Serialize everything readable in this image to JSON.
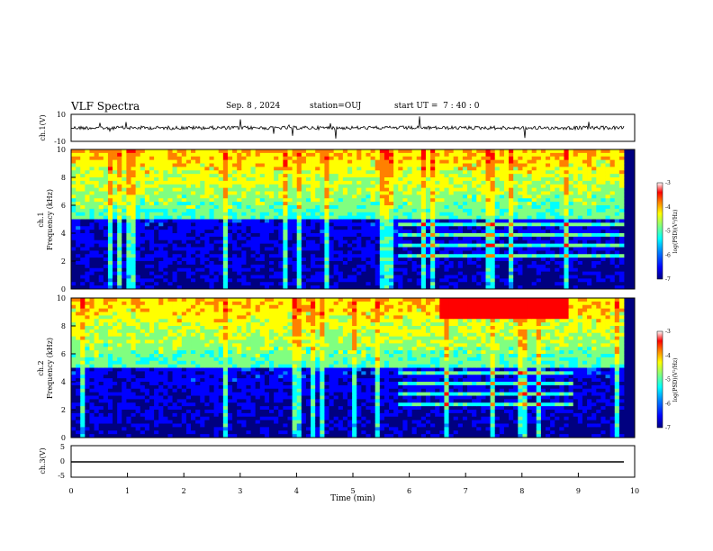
{
  "header": {
    "title": "VLF Spectra",
    "date": "Sep. 8 , 2024",
    "station": "station=OUJ",
    "start": "start UT =  7 : 40 : 0"
  },
  "colors": {
    "colormap": [
      "#000080",
      "#0000ff",
      "#0080ff",
      "#00ffff",
      "#80ff80",
      "#ffff00",
      "#ff8000",
      "#ff0000",
      "#ffffff"
    ]
  },
  "chart_data": [
    {
      "type": "line",
      "name": "waveform-ch1",
      "ylabel": "ch.1(V)",
      "ylim": [
        -10,
        10
      ],
      "yticks": [
        "10",
        "-10"
      ],
      "xlim": [
        0,
        10
      ],
      "grid": false
    },
    {
      "type": "heatmap",
      "name": "spectrogram-ch1",
      "ylabel": "ch.1\nFrequency (kHz)",
      "ylim": [
        0,
        10
      ],
      "yticks": [
        "0",
        "2",
        "4",
        "6",
        "8",
        "10"
      ],
      "xlim": [
        0,
        10
      ],
      "colorbar": {
        "label": "log(PSD)(V²/Hz)",
        "range": [
          -7,
          -3
        ],
        "ticks": [
          "-3",
          "-4",
          "-5",
          "-6",
          "-7"
        ]
      }
    },
    {
      "type": "heatmap",
      "name": "spectrogram-ch2",
      "ylabel": "ch.2\nFrequency (kHz)",
      "ylim": [
        0,
        10
      ],
      "yticks": [
        "0",
        "2",
        "4",
        "6",
        "8",
        "10"
      ],
      "xlim": [
        0,
        10
      ],
      "colorbar": {
        "label": "log(PSD)(V²/Hz)",
        "range": [
          -7,
          -3
        ],
        "ticks": [
          "-3",
          "-4",
          "-5",
          "-6",
          "-7"
        ]
      }
    },
    {
      "type": "line",
      "name": "waveform-ch3",
      "ylabel": "ch.3(V)",
      "ylim": [
        -5,
        5
      ],
      "yticks": [
        "5",
        "0",
        "-5"
      ],
      "xlim": [
        0,
        10
      ],
      "xlabel": "Time (min)",
      "xticks": [
        "0",
        "1",
        "2",
        "3",
        "4",
        "5",
        "6",
        "7",
        "8",
        "9",
        "10"
      ]
    }
  ]
}
